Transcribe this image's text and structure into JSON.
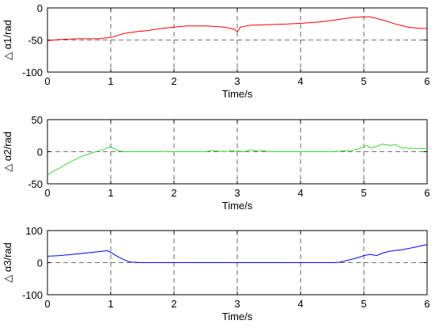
{
  "chart_data": [
    {
      "type": "line",
      "xlabel": "Time/s",
      "ylabel": "△ α1/rad",
      "xlim": [
        0,
        6
      ],
      "ylim": [
        -100,
        0
      ],
      "x_ticks": [
        "0",
        "1",
        "2",
        "3",
        "4",
        "5",
        "6"
      ],
      "y_ticks": [
        "-100",
        "-50",
        "0"
      ],
      "grid": "dashed vertical lines at each x tick",
      "reference_line": -50,
      "series": [
        {
          "color": "#ff0000",
          "x": [
            0,
            0.2,
            0.5,
            0.8,
            1.0,
            1.1,
            1.2,
            1.4,
            1.6,
            1.8,
            2.0,
            2.2,
            2.5,
            2.8,
            2.95,
            3.0,
            3.05,
            3.2,
            3.5,
            3.8,
            4.0,
            4.3,
            4.6,
            4.8,
            5.0,
            5.1,
            5.3,
            5.5,
            5.7,
            5.9,
            6.0
          ],
          "y": [
            -51,
            -49,
            -48,
            -48,
            -46,
            -43,
            -40,
            -37,
            -35,
            -32,
            -30,
            -28,
            -28,
            -30,
            -33,
            -37,
            -30,
            -27,
            -26,
            -25,
            -24,
            -22,
            -18,
            -15,
            -14,
            -14,
            -19,
            -25,
            -30,
            -32,
            -32
          ]
        }
      ]
    },
    {
      "type": "line",
      "xlabel": "Time/s",
      "ylabel": "△ α2/rad",
      "xlim": [
        0,
        6
      ],
      "ylim": [
        -50,
        50
      ],
      "x_ticks": [
        "0",
        "1",
        "2",
        "3",
        "4",
        "5",
        "6"
      ],
      "y_ticks": [
        "-50",
        "0",
        "50"
      ],
      "grid": "dashed vertical lines at each x tick",
      "reference_line": 0,
      "series": [
        {
          "color": "#33dd33",
          "x": [
            0,
            0.1,
            0.2,
            0.3,
            0.4,
            0.5,
            0.6,
            0.7,
            0.8,
            0.9,
            0.95,
            1.0,
            1.05,
            1.1,
            1.2,
            1.5,
            1.8,
            1.85,
            1.9,
            2.2,
            2.5,
            2.6,
            2.7,
            2.8,
            2.9,
            3.0,
            3.1,
            3.2,
            3.3,
            3.4,
            3.5,
            3.6,
            3.9,
            4.2,
            4.5,
            4.8,
            4.9,
            5.0,
            5.05,
            5.1,
            5.2,
            5.3,
            5.4,
            5.5,
            5.6,
            5.8,
            6.0
          ],
          "y": [
            -36,
            -30,
            -25,
            -19,
            -14,
            -9,
            -5,
            -2,
            1,
            4,
            6,
            8,
            5,
            2,
            0,
            0,
            0,
            1,
            0,
            0,
            0,
            2,
            1,
            0,
            2,
            1,
            0,
            3,
            1,
            2,
            0,
            0,
            0,
            0,
            0,
            2,
            4,
            7,
            10,
            6,
            8,
            12,
            10,
            11,
            6,
            5,
            5
          ]
        }
      ]
    },
    {
      "type": "line",
      "xlabel": "Time/s",
      "ylabel": "△ α3/rad",
      "xlim": [
        0,
        6
      ],
      "ylim": [
        -100,
        100
      ],
      "x_ticks": [
        "0",
        "1",
        "2",
        "3",
        "4",
        "5",
        "6"
      ],
      "y_ticks": [
        "-100",
        "0",
        "100"
      ],
      "grid": "dashed vertical lines at each x tick",
      "reference_line": 0,
      "series": [
        {
          "color": "#0000ff",
          "x": [
            0,
            0.2,
            0.4,
            0.6,
            0.8,
            0.9,
            0.95,
            1.0,
            1.1,
            1.2,
            1.3,
            1.5,
            2.0,
            2.5,
            3.0,
            3.5,
            4.0,
            4.5,
            4.6,
            4.7,
            4.8,
            4.9,
            5.0,
            5.1,
            5.2,
            5.3,
            5.4,
            5.5,
            5.6,
            5.7,
            5.8,
            5.9,
            6.0
          ],
          "y": [
            20,
            22,
            26,
            30,
            34,
            36,
            37,
            32,
            20,
            10,
            2,
            0,
            0,
            0,
            0,
            0,
            0,
            0,
            1,
            5,
            10,
            15,
            22,
            26,
            22,
            30,
            35,
            38,
            40,
            44,
            48,
            52,
            56
          ]
        }
      ]
    }
  ]
}
